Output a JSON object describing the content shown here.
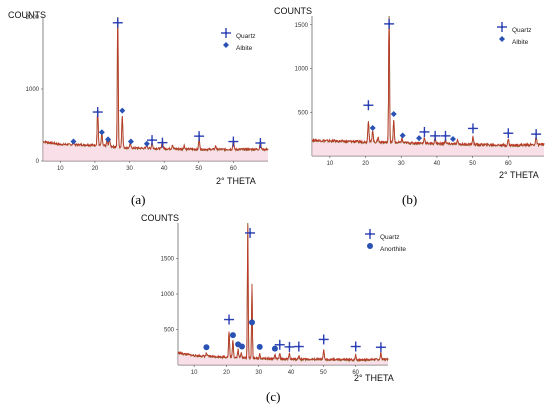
{
  "chart_data": [
    {
      "type": "line",
      "panel_label": "(a)",
      "ylabel": "COUNTS",
      "xlabel": "2° THETA",
      "xlim": [
        5,
        70
      ],
      "ylim": [
        0,
        2000
      ],
      "xticks": [
        10,
        20,
        30,
        40,
        50,
        60
      ],
      "yticks": [
        0,
        1000,
        2000
      ],
      "legend": [
        {
          "name": "Quartz",
          "marker": "cross",
          "color": "#2a3fb4"
        },
        {
          "name": "Albite",
          "marker": "diamond",
          "color": "#2a52b5"
        }
      ],
      "legend_position": "top-right",
      "pattern": {
        "baseline": [
          [
            5,
            270
          ],
          [
            10,
            230
          ],
          [
            20,
            220
          ],
          [
            30,
            180
          ],
          [
            40,
            170
          ],
          [
            50,
            160
          ],
          [
            60,
            160
          ],
          [
            70,
            160
          ]
        ],
        "peaks": [
          [
            13.8,
            60
          ],
          [
            20.8,
            500
          ],
          [
            22.0,
            180
          ],
          [
            23.5,
            80
          ],
          [
            24.2,
            110
          ],
          [
            26.6,
            2000
          ],
          [
            27.9,
            450
          ],
          [
            30.2,
            70
          ],
          [
            35.0,
            60
          ],
          [
            36.5,
            90
          ],
          [
            39.5,
            110
          ],
          [
            42.4,
            60
          ],
          [
            45.8,
            50
          ],
          [
            50.1,
            150
          ],
          [
            54.9,
            50
          ],
          [
            60.0,
            130
          ],
          [
            67.8,
            110
          ]
        ]
      },
      "markers": [
        {
          "phase": "Quartz",
          "x": 20.8,
          "y": 680
        },
        {
          "phase": "Quartz",
          "x": 26.6,
          "y": 1920
        },
        {
          "phase": "Quartz",
          "x": 36.5,
          "y": 290
        },
        {
          "phase": "Quartz",
          "x": 39.5,
          "y": 255
        },
        {
          "phase": "Quartz",
          "x": 50.1,
          "y": 345
        },
        {
          "phase": "Quartz",
          "x": 60.0,
          "y": 270
        },
        {
          "phase": "Quartz",
          "x": 67.8,
          "y": 250
        },
        {
          "phase": "Albite",
          "x": 13.8,
          "y": 270
        },
        {
          "phase": "Albite",
          "x": 22.0,
          "y": 400
        },
        {
          "phase": "Albite",
          "x": 23.8,
          "y": 300
        },
        {
          "phase": "Albite",
          "x": 27.9,
          "y": 700
        },
        {
          "phase": "Albite",
          "x": 30.4,
          "y": 270
        },
        {
          "phase": "Albite",
          "x": 35.0,
          "y": 240
        }
      ]
    },
    {
      "type": "line",
      "panel_label": "(b)",
      "ylabel": "COUNTS",
      "xlabel": "2° THETA",
      "xlim": [
        5,
        70
      ],
      "ylim": [
        0,
        1600
      ],
      "xticks": [
        10,
        20,
        30,
        40,
        50,
        60
      ],
      "yticks": [
        500,
        1000,
        1500
      ],
      "legend": [
        {
          "name": "Quartz",
          "marker": "cross",
          "color": "#2a3fb4"
        },
        {
          "name": "Albite",
          "marker": "diamond",
          "color": "#2a52b5"
        }
      ],
      "legend_position": "top-right",
      "pattern": {
        "baseline": [
          [
            5,
            180
          ],
          [
            10,
            170
          ],
          [
            20,
            160
          ],
          [
            30,
            150
          ],
          [
            40,
            140
          ],
          [
            50,
            130
          ],
          [
            60,
            120
          ],
          [
            70,
            130
          ]
        ],
        "peaks": [
          [
            20.8,
            250
          ],
          [
            22.0,
            140
          ],
          [
            23.5,
            60
          ],
          [
            26.6,
            1560
          ],
          [
            27.9,
            250
          ],
          [
            30.2,
            50
          ],
          [
            36.5,
            70
          ],
          [
            39.5,
            60
          ],
          [
            42.4,
            50
          ],
          [
            45.8,
            40
          ],
          [
            50.1,
            90
          ],
          [
            60.0,
            70
          ],
          [
            67.8,
            80
          ]
        ]
      },
      "markers": [
        {
          "phase": "Quartz",
          "x": 20.8,
          "y": 580
        },
        {
          "phase": "Quartz",
          "x": 26.6,
          "y": 1510
        },
        {
          "phase": "Quartz",
          "x": 36.5,
          "y": 275
        },
        {
          "phase": "Quartz",
          "x": 39.5,
          "y": 230
        },
        {
          "phase": "Quartz",
          "x": 42.4,
          "y": 230
        },
        {
          "phase": "Quartz",
          "x": 50.1,
          "y": 315
        },
        {
          "phase": "Quartz",
          "x": 60.0,
          "y": 260
        },
        {
          "phase": "Quartz",
          "x": 67.8,
          "y": 250
        },
        {
          "phase": "Albite",
          "x": 22.0,
          "y": 320
        },
        {
          "phase": "Albite",
          "x": 27.9,
          "y": 480
        },
        {
          "phase": "Albite",
          "x": 30.4,
          "y": 235
        },
        {
          "phase": "Albite",
          "x": 35.0,
          "y": 205
        },
        {
          "phase": "Albite",
          "x": 44.5,
          "y": 195
        }
      ]
    },
    {
      "type": "line",
      "panel_label": "(c)",
      "ylabel": "COUNTS",
      "xlabel": "2° THETA",
      "xlim": [
        5,
        70
      ],
      "ylim": [
        0,
        2000
      ],
      "xticks": [
        10,
        20,
        30,
        40,
        50,
        60
      ],
      "yticks": [
        500,
        1000,
        1500
      ],
      "legend": [
        {
          "name": "Quartz",
          "marker": "cross",
          "color": "#2a3fb4"
        },
        {
          "name": "Anorthite",
          "marker": "circle",
          "color": "#2a52b5"
        }
      ],
      "legend_position": "top-right",
      "pattern": {
        "baseline": [
          [
            5,
            170
          ],
          [
            10,
            130
          ],
          [
            20,
            110
          ],
          [
            30,
            90
          ],
          [
            40,
            80
          ],
          [
            50,
            75
          ],
          [
            60,
            70
          ],
          [
            70,
            80
          ]
        ],
        "peaks": [
          [
            13.8,
            40
          ],
          [
            20.8,
            360
          ],
          [
            22.0,
            250
          ],
          [
            23.6,
            120
          ],
          [
            24.6,
            80
          ],
          [
            26.6,
            1950
          ],
          [
            27.9,
            1050
          ],
          [
            30.3,
            60
          ],
          [
            35.0,
            60
          ],
          [
            36.5,
            70
          ],
          [
            39.5,
            80
          ],
          [
            42.4,
            50
          ],
          [
            50.1,
            130
          ],
          [
            60.0,
            70
          ],
          [
            67.8,
            90
          ]
        ]
      },
      "markers": [
        {
          "phase": "Quartz",
          "x": 20.8,
          "y": 640
        },
        {
          "phase": "Quartz",
          "x": 27.3,
          "y": 1860
        },
        {
          "phase": "Quartz",
          "x": 36.5,
          "y": 285
        },
        {
          "phase": "Quartz",
          "x": 39.5,
          "y": 255
        },
        {
          "phase": "Quartz",
          "x": 42.4,
          "y": 260
        },
        {
          "phase": "Quartz",
          "x": 50.1,
          "y": 360
        },
        {
          "phase": "Quartz",
          "x": 60.0,
          "y": 260
        },
        {
          "phase": "Quartz",
          "x": 67.8,
          "y": 250
        },
        {
          "phase": "Anorthite",
          "x": 13.8,
          "y": 250
        },
        {
          "phase": "Anorthite",
          "x": 22.0,
          "y": 420
        },
        {
          "phase": "Anorthite",
          "x": 23.6,
          "y": 290
        },
        {
          "phase": "Anorthite",
          "x": 24.8,
          "y": 260
        },
        {
          "phase": "Anorthite",
          "x": 27.9,
          "y": 600
        },
        {
          "phase": "Anorthite",
          "x": 30.3,
          "y": 255
        },
        {
          "phase": "Anorthite",
          "x": 35.0,
          "y": 230
        }
      ]
    }
  ]
}
